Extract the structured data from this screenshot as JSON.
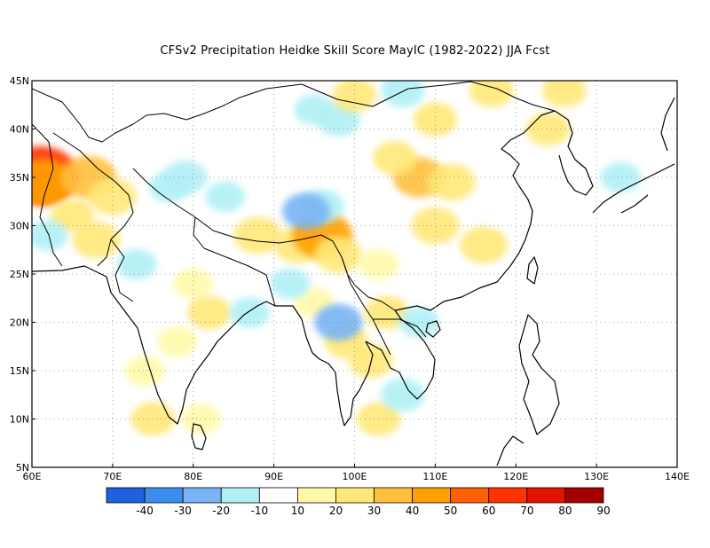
{
  "title": "CFSv2  Precipitation Heidke Skill Score MayIC (1982-2022) JJA Fcst",
  "map": {
    "lon_range": [
      60,
      140
    ],
    "lat_range": [
      5,
      45
    ],
    "grid_lines": true,
    "lon_ticks": [
      {
        "value": 60,
        "label": "60E"
      },
      {
        "value": 70,
        "label": "70E"
      },
      {
        "value": 80,
        "label": "80E"
      },
      {
        "value": 90,
        "label": "90E"
      },
      {
        "value": 100,
        "label": "100E"
      },
      {
        "value": 110,
        "label": "110E"
      },
      {
        "value": 120,
        "label": "120E"
      },
      {
        "value": 130,
        "label": "130E"
      },
      {
        "value": 140,
        "label": "140E"
      }
    ],
    "lat_ticks": [
      {
        "value": 5,
        "label": "5N"
      },
      {
        "value": 10,
        "label": "10N"
      },
      {
        "value": 15,
        "label": "15N"
      },
      {
        "value": 20,
        "label": "20N"
      },
      {
        "value": 25,
        "label": "25N"
      },
      {
        "value": 30,
        "label": "30N"
      },
      {
        "value": 35,
        "label": "35N"
      },
      {
        "value": 40,
        "label": "40N"
      },
      {
        "value": 45,
        "label": "45N"
      }
    ],
    "patches": [
      {
        "lon": 61,
        "lat": 35.2,
        "value": 60
      },
      {
        "lon": 61.5,
        "lat": 34.5,
        "value": 40
      },
      {
        "lon": 67,
        "lat": 35,
        "value": 35
      },
      {
        "lon": 70,
        "lat": 33,
        "value": 25
      },
      {
        "lon": 65,
        "lat": 31,
        "value": 20
      },
      {
        "lon": 68,
        "lat": 28.5,
        "value": 25
      },
      {
        "lon": 62,
        "lat": 29,
        "value": -15
      },
      {
        "lon": 73,
        "lat": 26,
        "value": -15
      },
      {
        "lon": 80,
        "lat": 24,
        "value": 15
      },
      {
        "lon": 82,
        "lat": 21,
        "value": 20
      },
      {
        "lon": 78,
        "lat": 18,
        "value": 15
      },
      {
        "lon": 74,
        "lat": 15,
        "value": 15
      },
      {
        "lon": 75,
        "lat": 10,
        "value": 20
      },
      {
        "lon": 81,
        "lat": 10,
        "value": 15
      },
      {
        "lon": 88,
        "lat": 29,
        "value": 25
      },
      {
        "lon": 93,
        "lat": 28,
        "value": 25
      },
      {
        "lon": 96,
        "lat": 29,
        "value": 40
      },
      {
        "lon": 98,
        "lat": 27,
        "value": 25
      },
      {
        "lon": 95,
        "lat": 22,
        "value": 15
      },
      {
        "lon": 87,
        "lat": 21,
        "value": -15
      },
      {
        "lon": 92,
        "lat": 24,
        "value": -15
      },
      {
        "lon": 96,
        "lat": 32,
        "value": -20
      },
      {
        "lon": 94,
        "lat": 31.5,
        "value": -25
      },
      {
        "lon": 98,
        "lat": 41,
        "value": -20
      },
      {
        "lon": 95,
        "lat": 42,
        "value": -15
      },
      {
        "lon": 108,
        "lat": 35,
        "value": 30
      },
      {
        "lon": 112,
        "lat": 34.5,
        "value": 25
      },
      {
        "lon": 105,
        "lat": 37,
        "value": 20
      },
      {
        "lon": 110,
        "lat": 30,
        "value": 25
      },
      {
        "lon": 116,
        "lat": 28,
        "value": 25
      },
      {
        "lon": 103,
        "lat": 26,
        "value": 15
      },
      {
        "lon": 110,
        "lat": 41,
        "value": 20
      },
      {
        "lon": 100,
        "lat": 43.5,
        "value": 20
      },
      {
        "lon": 117,
        "lat": 44,
        "value": 20
      },
      {
        "lon": 106,
        "lat": 44,
        "value": -20
      },
      {
        "lon": 84,
        "lat": 33,
        "value": -15
      },
      {
        "lon": 77,
        "lat": 34,
        "value": -15
      },
      {
        "lon": 79,
        "lat": 35,
        "value": -20
      },
      {
        "lon": 99,
        "lat": 18,
        "value": 20
      },
      {
        "lon": 102,
        "lat": 16,
        "value": 20
      },
      {
        "lon": 98,
        "lat": 20,
        "value": -25
      },
      {
        "lon": 103,
        "lat": 10,
        "value": 20
      },
      {
        "lon": 106,
        "lat": 12.5,
        "value": -20
      },
      {
        "lon": 104,
        "lat": 21,
        "value": 20
      },
      {
        "lon": 108,
        "lat": 20,
        "value": -15
      },
      {
        "lon": 126,
        "lat": 44,
        "value": 20
      },
      {
        "lon": 124,
        "lat": 40,
        "value": 20
      },
      {
        "lon": 133,
        "lat": 35,
        "value": -15
      }
    ]
  },
  "colorbar": {
    "colors": [
      "#1e60e0",
      "#3c8cf0",
      "#78b4f5",
      "#b0f0f5",
      "#ffffff",
      "#fffaaa",
      "#ffe878",
      "#ffc03c",
      "#ffa000",
      "#ff6000",
      "#ff3200",
      "#e11400",
      "#a50000"
    ],
    "labels": [
      "-40",
      "-30",
      "-20",
      "-10",
      "10",
      "20",
      "30",
      "40",
      "50",
      "60",
      "70",
      "80",
      "90"
    ]
  }
}
